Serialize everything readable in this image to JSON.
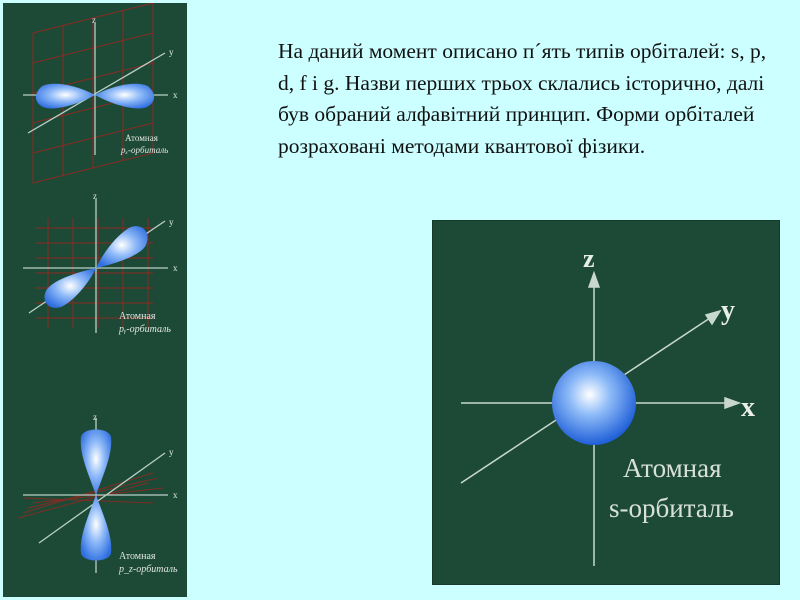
{
  "text": {
    "paragraph": "На даний момент описано п´ять типів орбіталей: s, p, d, f і g. Назви перших трьох склались історично, далі був обраний алфавітний принцип. Форми орбіталей розраховані методами квантової фізики."
  },
  "left_figures": [
    {
      "z": "z",
      "y": "y",
      "x": "x",
      "line1": "Атомная",
      "line2": "pₓ-орбиталь"
    },
    {
      "z": "z",
      "y": "y",
      "x": "x",
      "line1": "Атомная",
      "line2": "pᵧ-орбиталь"
    },
    {
      "z": "z",
      "y": "y",
      "x": "x",
      "line1": "Атомная",
      "line2": "p_z-орбиталь"
    }
  ],
  "right_figure": {
    "z": "z",
    "y": "y",
    "x": "x",
    "line1": "Атомная",
    "line2": "s-орбиталь"
  },
  "colors": {
    "background": "#ccffff",
    "panel": "#1d4a36",
    "orbital": "#4a8cf0",
    "grid": "#8a2a22"
  }
}
